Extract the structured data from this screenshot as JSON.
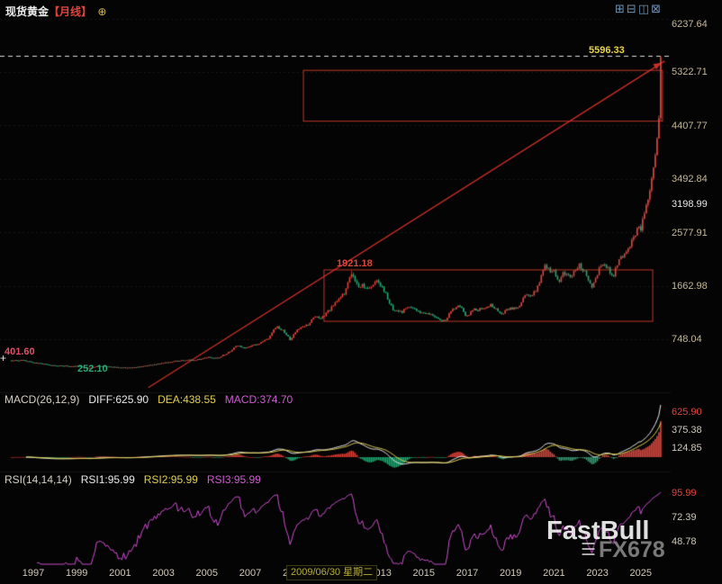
{
  "header": {
    "instrument": "现货黄金",
    "timeframe": "【月线】",
    "add_icon": "⊕",
    "toolbar_icons": [
      {
        "name": "grid",
        "glyph": "⊞"
      },
      {
        "name": "split-horizontal",
        "glyph": "⊟"
      },
      {
        "name": "split-vertical",
        "glyph": "◫"
      },
      {
        "name": "maximize",
        "glyph": "⊠"
      }
    ]
  },
  "footer": {
    "selected_date": "2009/06/30 星期二"
  },
  "watermarks": {
    "primary": "FastBull",
    "secondary": "FX678",
    "logo_glyph": "☰"
  },
  "icons": {
    "cross_marker": "+"
  },
  "colors": {
    "up": "#e2443c",
    "down": "#2aa876",
    "box": "#c0392b",
    "trendline": "#cc2f28",
    "dashed_line": "#dcdcdc",
    "diff_line": "#e9e9e9",
    "dea_line": "#e3cf4e",
    "rsi": "#cf4fd0",
    "axis_text": "#c6b998",
    "highlight_red": "#e2443c",
    "highlight_yellow": "#e8d44d"
  },
  "chart_data": {
    "type": "candlestick",
    "title": "现货黄金 月线 (Spot Gold, Monthly)",
    "x_axis": {
      "start_year": 1996,
      "end_year": 2026,
      "labels": [
        "1997",
        "1999",
        "2001",
        "2003",
        "2005",
        "2007",
        "2009",
        "2011",
        "2013",
        "2015",
        "2017",
        "2019",
        "2021",
        "2023",
        "2025"
      ]
    },
    "y_axis": {
      "labels": [
        "6237.64",
        "5322.71",
        "4407.77",
        "3492.84",
        "3198.99",
        "2577.91",
        "1662.98",
        "748.04"
      ],
      "gridline_values": [
        6237.64,
        5322.71,
        4407.77,
        3492.84,
        2577.91,
        1662.98,
        748.04
      ]
    },
    "series_anchors": [
      [
        1996.0,
        385
      ],
      [
        1996.5,
        388
      ],
      [
        1997.0,
        352
      ],
      [
        1997.5,
        325
      ],
      [
        1998.0,
        294
      ],
      [
        1998.5,
        293
      ],
      [
        1999.0,
        287
      ],
      [
        1999.58,
        255
      ],
      [
        2000.0,
        288
      ],
      [
        2000.5,
        278
      ],
      [
        2001.25,
        260
      ],
      [
        2001.9,
        276
      ],
      [
        2002.5,
        310
      ],
      [
        2003.1,
        350
      ],
      [
        2003.9,
        390
      ],
      [
        2004.5,
        395
      ],
      [
        2004.95,
        438
      ],
      [
        2005.5,
        430
      ],
      [
        2005.95,
        510
      ],
      [
        2006.4,
        640
      ],
      [
        2006.75,
        585
      ],
      [
        2007.3,
        665
      ],
      [
        2007.8,
        745
      ],
      [
        2008.2,
        965
      ],
      [
        2008.55,
        880
      ],
      [
        2008.85,
        735
      ],
      [
        2009.15,
        920
      ],
      [
        2009.7,
        995
      ],
      [
        2009.95,
        1130
      ],
      [
        2010.3,
        1120
      ],
      [
        2010.6,
        1230
      ],
      [
        2010.95,
        1390
      ],
      [
        2011.3,
        1510
      ],
      [
        2011.67,
        1870
      ],
      [
        2011.95,
        1640
      ],
      [
        2012.2,
        1680
      ],
      [
        2012.45,
        1580
      ],
      [
        2012.8,
        1740
      ],
      [
        2013.1,
        1650
      ],
      [
        2013.35,
        1420
      ],
      [
        2013.6,
        1230
      ],
      [
        2013.95,
        1210
      ],
      [
        2014.3,
        1290
      ],
      [
        2014.75,
        1230
      ],
      [
        2014.95,
        1185
      ],
      [
        2015.3,
        1180
      ],
      [
        2015.6,
        1095
      ],
      [
        2015.95,
        1062
      ],
      [
        2016.3,
        1240
      ],
      [
        2016.6,
        1355
      ],
      [
        2016.95,
        1145
      ],
      [
        2017.35,
        1250
      ],
      [
        2017.7,
        1275
      ],
      [
        2018.05,
        1340
      ],
      [
        2018.6,
        1190
      ],
      [
        2018.95,
        1280
      ],
      [
        2019.35,
        1290
      ],
      [
        2019.65,
        1520
      ],
      [
        2019.95,
        1480
      ],
      [
        2020.2,
        1590
      ],
      [
        2020.6,
        2040
      ],
      [
        2020.85,
        1870
      ],
      [
        2021.0,
        1940
      ],
      [
        2021.2,
        1710
      ],
      [
        2021.45,
        1900
      ],
      [
        2021.75,
        1790
      ],
      [
        2022.15,
        2030
      ],
      [
        2022.55,
        1820
      ],
      [
        2022.75,
        1635
      ],
      [
        2023.05,
        1925
      ],
      [
        2023.3,
        2030
      ],
      [
        2023.55,
        1920
      ],
      [
        2023.75,
        1850
      ],
      [
        2023.95,
        2060
      ],
      [
        2024.2,
        2180
      ],
      [
        2024.45,
        2330
      ],
      [
        2024.7,
        2520
      ],
      [
        2024.85,
        2680
      ],
      [
        2025.0,
        2630
      ],
      [
        2025.15,
        2900
      ],
      [
        2025.3,
        3120
      ],
      [
        2025.45,
        3320
      ],
      [
        2025.58,
        3650
      ],
      [
        2025.7,
        3980
      ],
      [
        2025.79,
        4350
      ],
      [
        2025.86,
        4750
      ],
      [
        2025.92,
        5580
      ]
    ],
    "key_points": {
      "all_time_low": 252.1,
      "left_marker": 401.6,
      "peak_2011": 1921.18,
      "current_high": 5596.33,
      "last_close": 5580
    },
    "annotations": [
      {
        "text": "401.60",
        "color": "#e0506a"
      },
      {
        "text": "252.10",
        "color": "#2aa876"
      },
      {
        "text": "1921.18",
        "color": "#e2443c"
      },
      {
        "text": "5596.33",
        "color": "#e8d44d"
      }
    ],
    "high_line": {
      "price": 5596.33,
      "style": "dashed"
    },
    "trendline": {
      "t1": 2002.3,
      "p1": -80,
      "t2": 2026.1,
      "p2": 5510
    },
    "rectangles": [
      {
        "t1": 2009.45,
        "t2": 2026.0,
        "p_low": 4480,
        "p_high": 5350
      },
      {
        "t1": 2010.4,
        "t2": 2025.55,
        "p_low": 1055,
        "p_high": 1935
      }
    ],
    "indicators": {
      "macd": {
        "title": "MACD(26,12,9)",
        "diff": "DIFF:625.90",
        "dea": "DEA:438.55",
        "macd": "MACD:374.70",
        "axis_labels": [
          "625.90",
          "375.38",
          "124.85"
        ],
        "fast": 12,
        "slow": 26,
        "signal": 9
      },
      "rsi": {
        "title": "RSI(14,14,14)",
        "rsi1": "RSI1:95.99",
        "rsi2": "RSI2:95.99",
        "rsi3": "RSI3:95.99",
        "axis_labels": [
          "95.99",
          "72.39",
          "48.78"
        ],
        "period": 14
      }
    }
  }
}
